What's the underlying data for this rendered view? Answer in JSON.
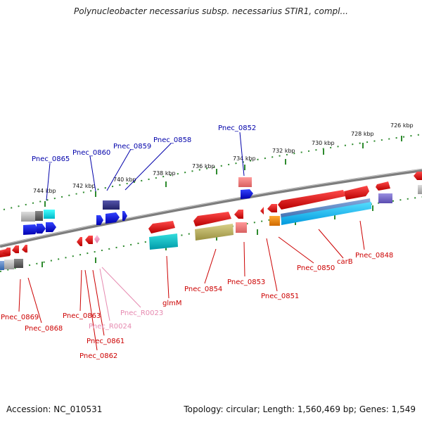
{
  "title": "Polynucleobacter necessarius subsp. necessarius STIR1, compl...",
  "footer": {
    "accession": "Accession: NC_010531",
    "stats": "Topology: circular; Length: 1,560,469 bp; Genes: 1,549"
  },
  "colors": {
    "backbone": "#7a7a7a",
    "tick_green": "#2e8b2e",
    "label_red": "#cc0000",
    "label_blue": "#0000aa",
    "label_pink": "#e68ab0"
  },
  "tick_labels": [
    "726 kbp",
    "728 kbp",
    "730 kbp",
    "732 kbp",
    "734 kbp",
    "736 kbp",
    "738 kbp",
    "740 kbp",
    "742 kbp",
    "744 kbp"
  ],
  "gene_labels_forward": [
    "Pnec_0852",
    "Pnec_0858",
    "Pnec_0859",
    "Pnec_0860",
    "Pnec_0865"
  ],
  "gene_labels_reverse": [
    "Pnec_0848",
    "carB",
    "Pnec_0850",
    "Pnec_0851",
    "Pnec_0853",
    "Pnec_0854",
    "glmM",
    "Pnec_R0023",
    "Pnec_R0024",
    "Pnec_0863",
    "Pnec_0861",
    "Pnec_0862",
    "Pnec_0868",
    "Pnec_0869"
  ]
}
